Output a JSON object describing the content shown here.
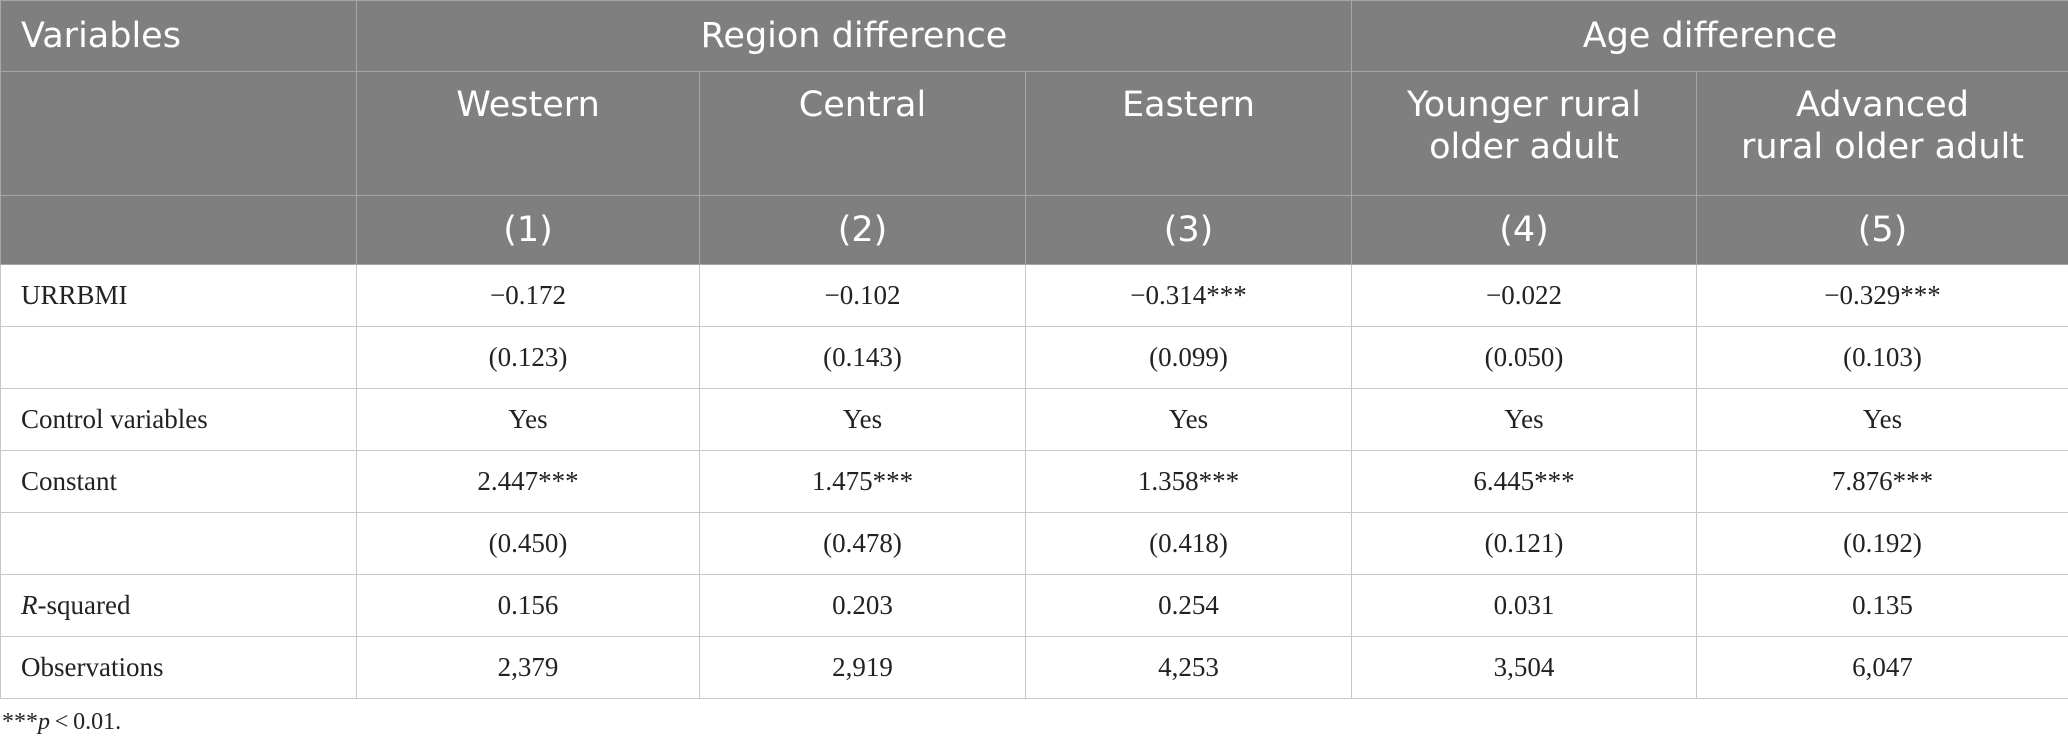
{
  "table": {
    "var_header": "Variables",
    "groups": [
      {
        "label": "Region difference"
      },
      {
        "label": "Age difference"
      }
    ],
    "columns": [
      {
        "name": "Western",
        "num": "(1)"
      },
      {
        "name": "Central",
        "num": "(2)"
      },
      {
        "name": "Eastern",
        "num": "(3)"
      },
      {
        "name_line1": "Younger rural",
        "name_line2": "older adult",
        "num": "(4)"
      },
      {
        "name_line1": "Advanced",
        "name_line2": "rural older adult",
        "num": "(5)"
      }
    ],
    "rows": [
      {
        "label": "URRBMI",
        "cells": [
          "−0.172",
          "−0.102",
          "−0.314***",
          "−0.022",
          "−0.329***"
        ]
      },
      {
        "label": "",
        "cells": [
          "(0.123)",
          "(0.143)",
          "(0.099)",
          "(0.050)",
          "(0.103)"
        ]
      },
      {
        "label": "Control variables",
        "cells": [
          "Yes",
          "Yes",
          "Yes",
          "Yes",
          "Yes"
        ]
      },
      {
        "label": "Constant",
        "cells": [
          "2.447***",
          "1.475***",
          "1.358***",
          "6.445***",
          "7.876***"
        ]
      },
      {
        "label": "",
        "cells": [
          "(0.450)",
          "(0.478)",
          "(0.418)",
          "(0.121)",
          "(0.192)"
        ]
      },
      {
        "label_italic": "R",
        "label_rest": "-squared",
        "cells": [
          "0.156",
          "0.203",
          "0.254",
          "0.031",
          "0.135"
        ]
      },
      {
        "label": "Observations",
        "cells": [
          "2,379",
          "2,919",
          "4,253",
          "3,504",
          "6,047"
        ]
      }
    ]
  },
  "note": {
    "stars": "***",
    "p": "p",
    "rest": " < 0.01."
  }
}
